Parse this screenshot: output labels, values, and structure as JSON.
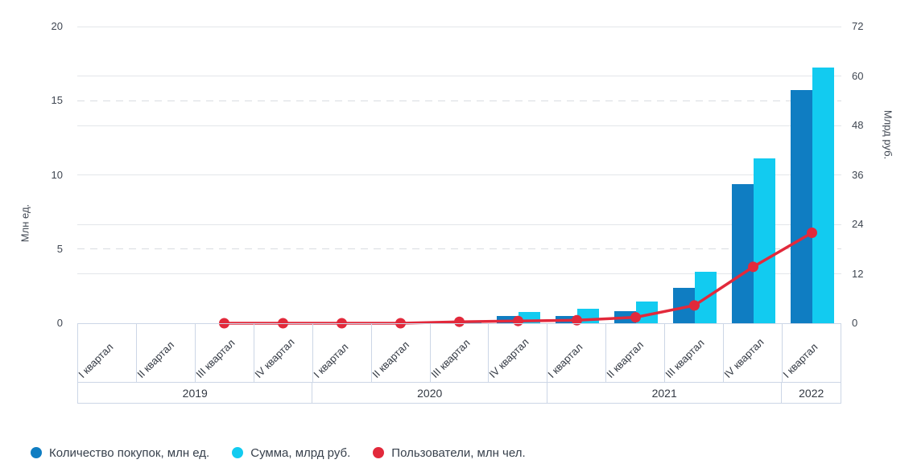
{
  "chart_data": {
    "type": "bar",
    "title": "",
    "x_groups": [
      {
        "year": "2019",
        "quarters": [
          "I квартал",
          "II квартал",
          "III квартал",
          "IV квартал"
        ]
      },
      {
        "year": "2020",
        "quarters": [
          "I квартал",
          "II квартал",
          "III квартал",
          "IV квартал"
        ]
      },
      {
        "year": "2021",
        "quarters": [
          "I квартал",
          "II квартал",
          "III квартал",
          "IV квартал"
        ]
      },
      {
        "year": "2022",
        "quarters": [
          "I квартал"
        ]
      }
    ],
    "series": [
      {
        "name": "Количество покупок, млн ед.",
        "type": "bar",
        "axis": "left",
        "color": "#0f7dc2",
        "values": [
          0,
          0,
          0,
          0,
          0,
          0,
          0.1,
          0.5,
          0.5,
          0.8,
          2.4,
          9.4,
          15.7
        ]
      },
      {
        "name": "Сумма, млрд руб.",
        "type": "bar",
        "axis": "right",
        "color": "#12cbf0",
        "values": [
          0,
          0,
          0,
          0,
          0,
          0,
          0.4,
          2.7,
          3.5,
          5.3,
          12.4,
          40,
          62
        ]
      },
      {
        "name": "Пользователи, млн чел.",
        "type": "line",
        "axis": "left",
        "color": "#e2293b",
        "values": [
          null,
          null,
          0,
          0,
          0,
          0,
          0.1,
          0.15,
          0.2,
          0.4,
          1.2,
          3.8,
          6.1
        ]
      }
    ],
    "left_axis": {
      "label": "Млн ед.",
      "ticks": [
        0,
        5,
        10,
        15,
        20
      ],
      "max": 20,
      "dashed_ticks": [
        5,
        15
      ]
    },
    "right_axis": {
      "label": "Млрд руб.",
      "ticks": [
        0,
        12,
        24,
        36,
        48,
        60,
        72
      ],
      "max": 72
    },
    "legend_position": "bottom-left",
    "grid": true
  },
  "colors": {
    "bar_purchases": "#0f7dc2",
    "bar_sum": "#12cbf0",
    "line_users": "#e2293b",
    "grid_solid": "#e3e6ea",
    "grid_dashed": "#d9dce1",
    "table_border": "#ccd6e6",
    "tick_text": "#3f4651",
    "label_text": "#333943"
  }
}
